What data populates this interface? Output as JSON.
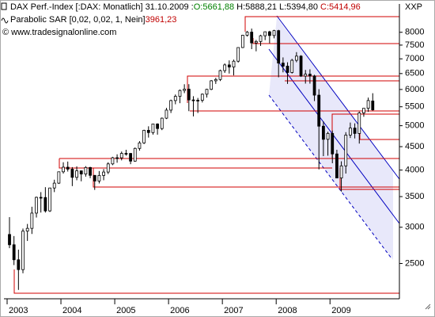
{
  "symbol": "XXP",
  "header": {
    "name": "DAX Perf.-Index [:DAX: Monatlich] 31.10.2009 :",
    "open": "O:5661,88",
    "high": "H:5888,21",
    "low": "L:5394,80",
    "close": "C:5414,96"
  },
  "indicator": {
    "name": "Parabolic SAR [0,02, 0,02, 1, Nein]",
    "value": "3961,23"
  },
  "copyright": "© www.tradesignalonline.com",
  "chart_data": {
    "type": "candlestick",
    "log_y": true,
    "grid": true,
    "up_color": "#ffffff",
    "down_color": "#000000",
    "edge_color": "#000000",
    "categories": [
      "2003",
      null,
      null,
      null,
      null,
      null,
      null,
      null,
      null,
      null,
      null,
      null,
      "2004",
      null,
      null,
      null,
      null,
      null,
      null,
      null,
      null,
      null,
      null,
      null,
      "2005",
      null,
      null,
      null,
      null,
      null,
      null,
      null,
      null,
      null,
      null,
      null,
      "2006",
      null,
      null,
      null,
      null,
      null,
      null,
      null,
      null,
      null,
      null,
      null,
      "2007",
      null,
      null,
      null,
      null,
      null,
      null,
      null,
      null,
      null,
      null,
      null,
      "2008",
      null,
      null,
      null,
      null,
      null,
      null,
      null,
      null,
      null,
      null,
      null,
      "2009",
      null,
      null,
      null,
      null,
      null,
      null,
      null,
      null,
      null
    ],
    "open": [
      2893,
      2747,
      2547,
      2424,
      2942,
      2983,
      3221,
      3487,
      3484,
      3257,
      3655,
      3745,
      3965,
      4058,
      4018,
      3856,
      3985,
      3921,
      4052,
      3895,
      3785,
      3893,
      3960,
      4126,
      4256,
      4254,
      4350,
      4349,
      4184,
      4460,
      4586,
      4886,
      4830,
      5044,
      4929,
      5193,
      5408,
      5674,
      5796,
      5970,
      6009,
      5692,
      5683,
      5681,
      5859,
      6004,
      6268,
      6309,
      6597,
      6789,
      6716,
      6917,
      7409,
      7883,
      8007,
      7584,
      7638,
      7862,
      8020,
      7871,
      8067,
      6852,
      6748,
      6535,
      6949,
      7096,
      6418,
      6480,
      6422,
      5831,
      4988,
      4669,
      4810,
      4338,
      3844,
      4085,
      4770,
      4941,
      4809,
      5332,
      5458,
      5661.88
    ],
    "high": [
      3157,
      2870,
      2680,
      2980,
      3050,
      3326,
      3500,
      3580,
      3670,
      3660,
      3810,
      3966,
      4160,
      4175,
      4060,
      4075,
      3990,
      4080,
      4065,
      3900,
      3980,
      4020,
      4160,
      4275,
      4330,
      4390,
      4430,
      4360,
      4480,
      4627,
      4900,
      4985,
      5050,
      5060,
      5210,
      5470,
      5700,
      5850,
      5999,
      6160,
      6162,
      5800,
      5750,
      5880,
      6020,
      6290,
      6360,
      6629,
      6840,
      6945,
      6970,
      7410,
      7900,
      8050,
      8152,
      7700,
      7900,
      8030,
      8060,
      8100,
      8100,
      7050,
      6880,
      7000,
      7240,
      7130,
      6620,
      6640,
      6460,
      6010,
      5110,
      4850,
      4880,
      4430,
      4180,
      4840,
      5080,
      5060,
      5370,
      5460,
      5760,
      5888.21
    ],
    "low": [
      2700,
      2480,
      2189,
      2380,
      2800,
      2900,
      3150,
      3230,
      3230,
      3240,
      3580,
      3730,
      3930,
      3970,
      3690,
      3800,
      3780,
      3870,
      3840,
      3620,
      3740,
      3800,
      3920,
      4100,
      4150,
      4200,
      4300,
      4120,
      4170,
      4410,
      4560,
      4710,
      4780,
      4780,
      4890,
      5170,
      5330,
      5570,
      5600,
      5890,
      5380,
      5240,
      5330,
      5620,
      5760,
      5980,
      6170,
      6260,
      6520,
      6500,
      6440,
      6870,
      7390,
      7830,
      7350,
      7270,
      7470,
      7690,
      7570,
      7760,
      6380,
      6540,
      6170,
      6500,
      6880,
      6390,
      6180,
      6180,
      5660,
      4014,
      4290,
      4300,
      4140,
      3850,
      3589,
      3930,
      4700,
      4690,
      4570,
      5230,
      5360,
      5394.8
    ],
    "close": [
      2747,
      2547,
      2424,
      2942,
      2983,
      3221,
      3487,
      3484,
      3257,
      3655,
      3745,
      3965,
      4058,
      4018,
      3856,
      3985,
      3921,
      4052,
      3895,
      3785,
      3893,
      3960,
      4126,
      4256,
      4254,
      4350,
      4349,
      4184,
      4460,
      4586,
      4886,
      4830,
      5044,
      4929,
      5193,
      5408,
      5674,
      5796,
      5970,
      6009,
      5692,
      5683,
      5681,
      5859,
      6004,
      6268,
      6309,
      6597,
      6789,
      6716,
      6917,
      7409,
      7883,
      8007,
      7584,
      7638,
      7862,
      8020,
      7871,
      8067,
      6852,
      6748,
      6535,
      6949,
      7096,
      6418,
      6480,
      6422,
      5831,
      4988,
      4669,
      4810,
      4338,
      3844,
      4085,
      4770,
      4941,
      4809,
      5332,
      5458,
      5675,
      5414.96
    ],
    "ylim": [
      2110,
      8900
    ],
    "yticks": [
      2500,
      3000,
      3500,
      4000,
      4500,
      5000,
      5500,
      6000,
      6500,
      7000,
      7500,
      8000
    ]
  }
}
